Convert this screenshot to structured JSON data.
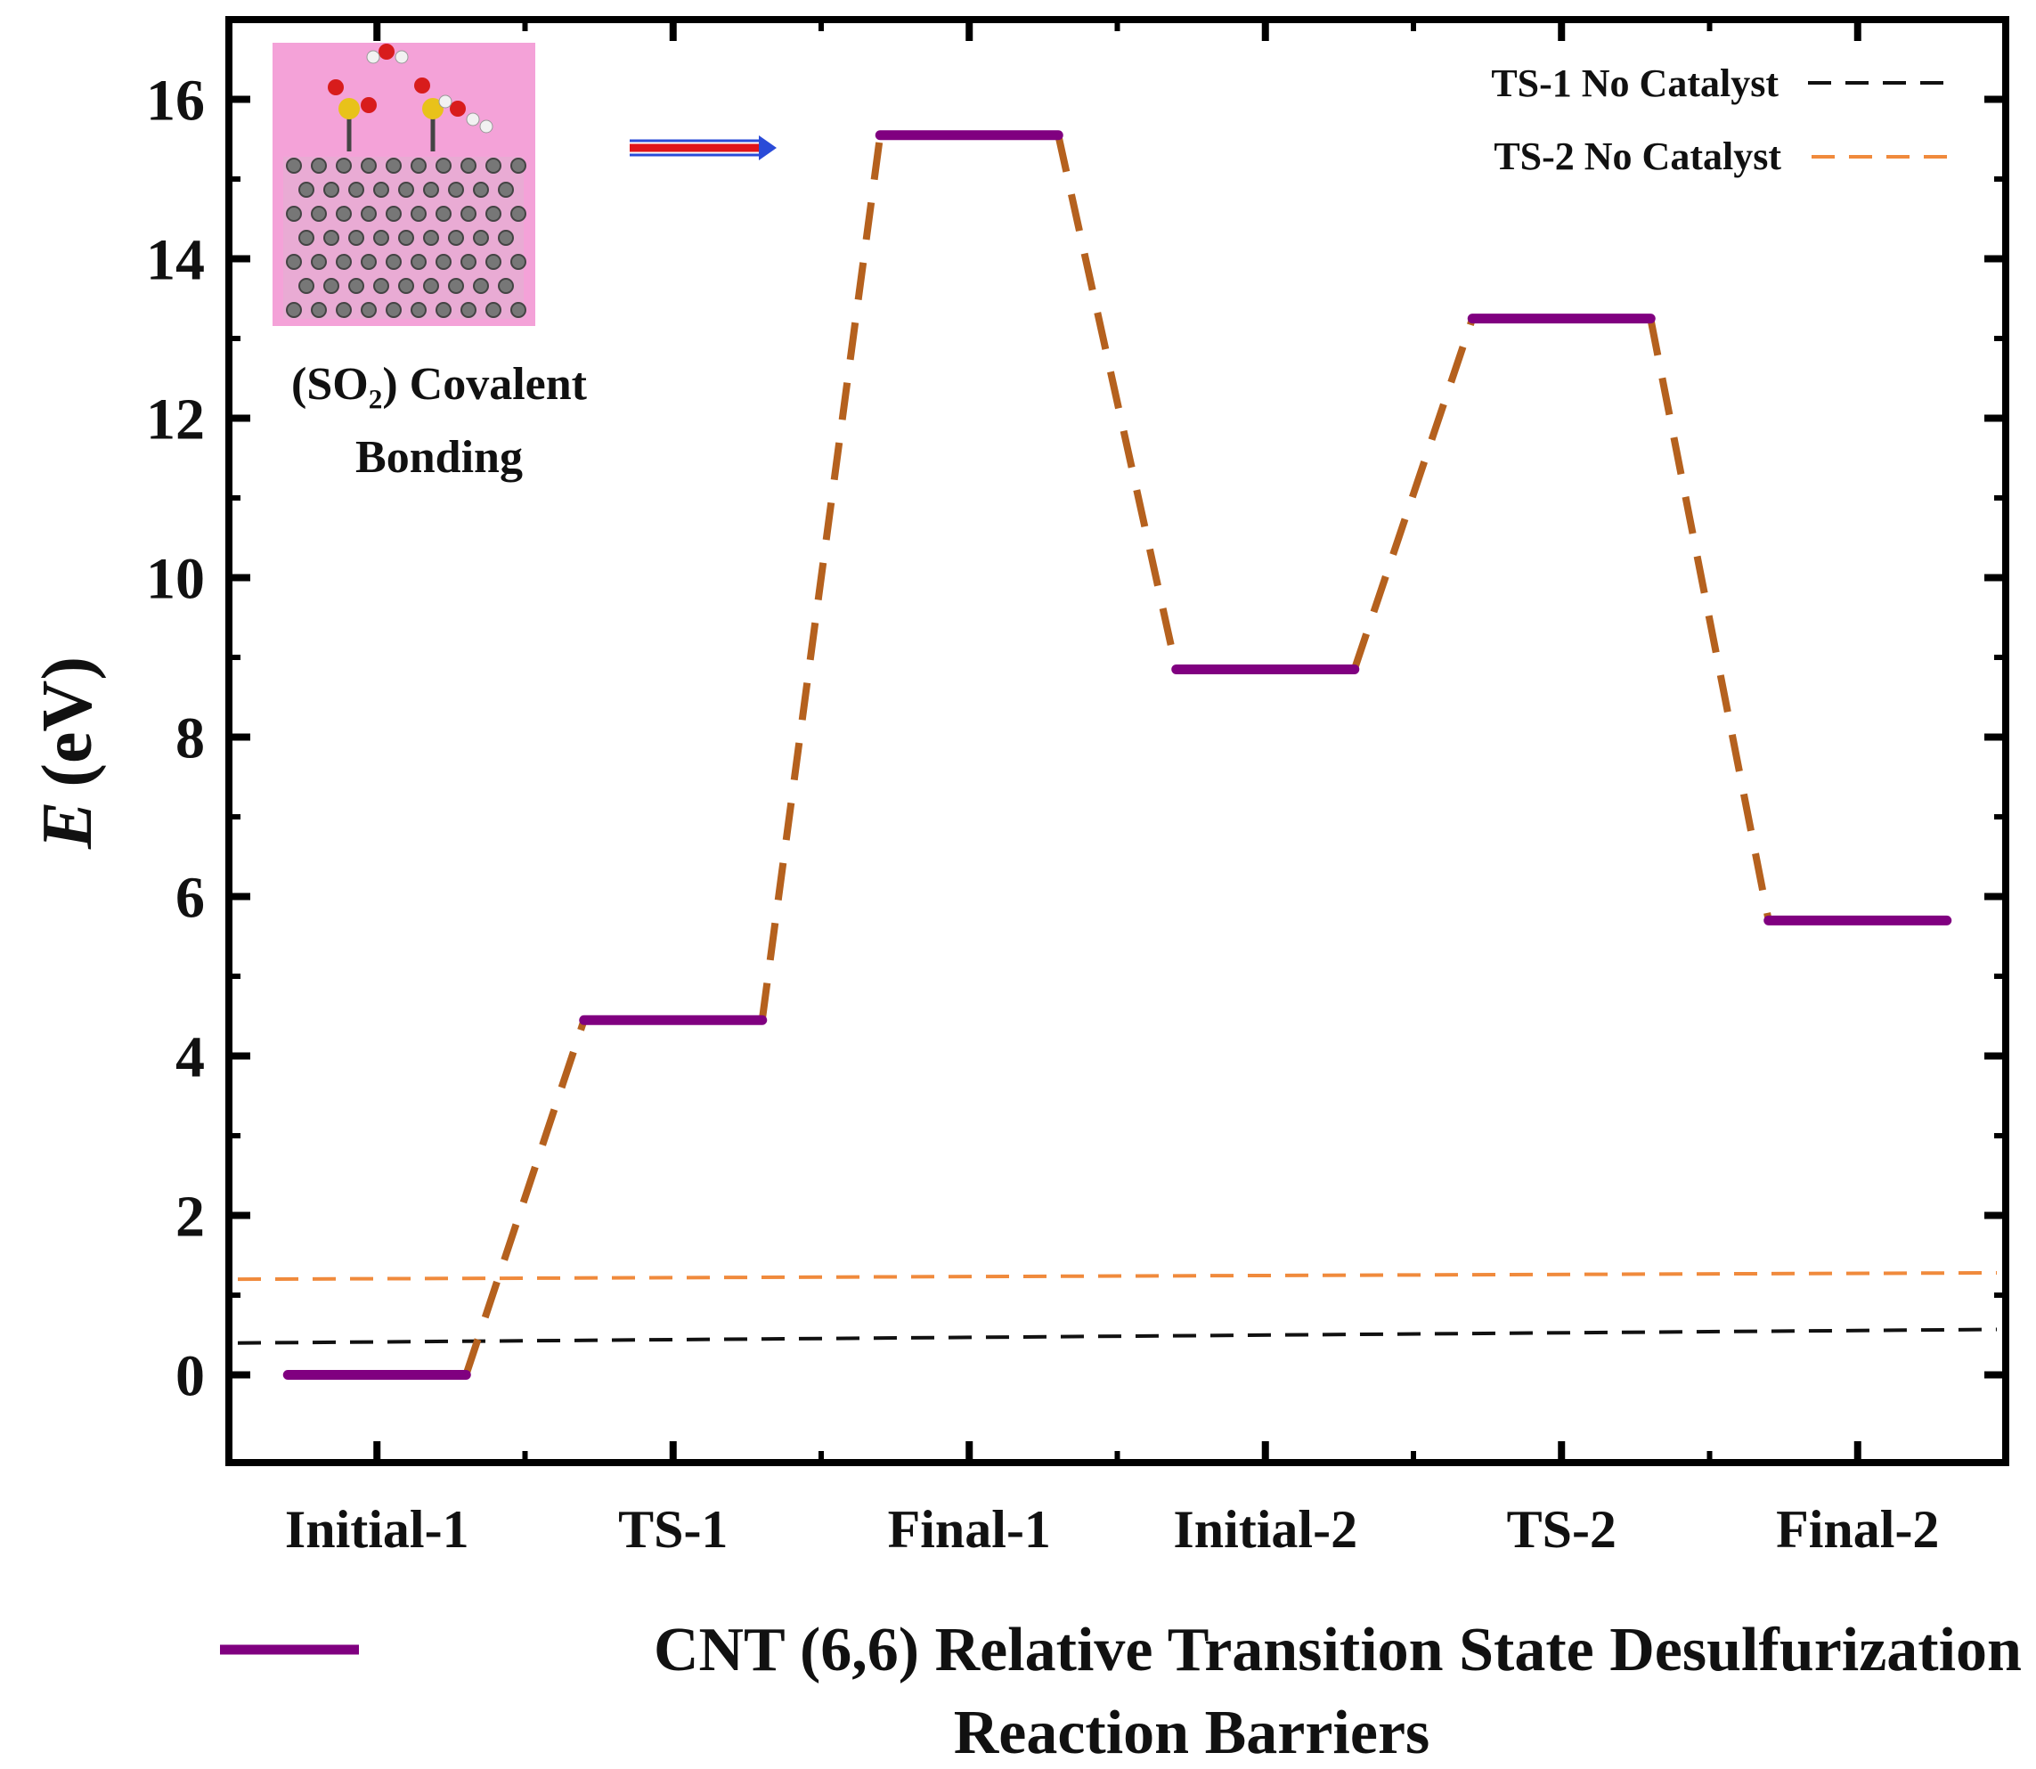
{
  "chart_data": {
    "type": "line",
    "title": "",
    "xlabel": "",
    "ylabel_italic": "E",
    "ylabel_units": "(eV)",
    "ylim": [
      -1.1,
      17
    ],
    "yticks": [
      0,
      2,
      4,
      6,
      8,
      10,
      12,
      14,
      16
    ],
    "categories": [
      "Initial-1",
      "TS-1",
      "Final-1",
      "Initial-2",
      "TS-2",
      "Final-2"
    ],
    "series": [
      {
        "name": "CNT (6,6) Relative Transition State Desulfurization Reaction Barriers",
        "name_lines": [
          "CNT (6,6) Relative Transition State Desulfurization",
          "Reaction Barriers"
        ],
        "values": [
          0.0,
          4.45,
          15.55,
          8.85,
          13.25,
          5.7
        ],
        "color": "#800080",
        "connector_color": "#b5611e"
      }
    ],
    "reference_lines": [
      {
        "name": "TS-1 No Catalyst",
        "start": 0.4,
        "end": 0.57,
        "color": "#111111"
      },
      {
        "name": "TS-2 No Catalyst",
        "start": 1.2,
        "end": 1.28,
        "color": "#f08a3c"
      }
    ],
    "inset": {
      "caption_lines": [
        "(SO₂) Covalent",
        "Bonding"
      ],
      "background": "#f4a2d8"
    },
    "arrow_colors": [
      "#e0141a",
      "#2a4bd8"
    ],
    "grid": false
  }
}
